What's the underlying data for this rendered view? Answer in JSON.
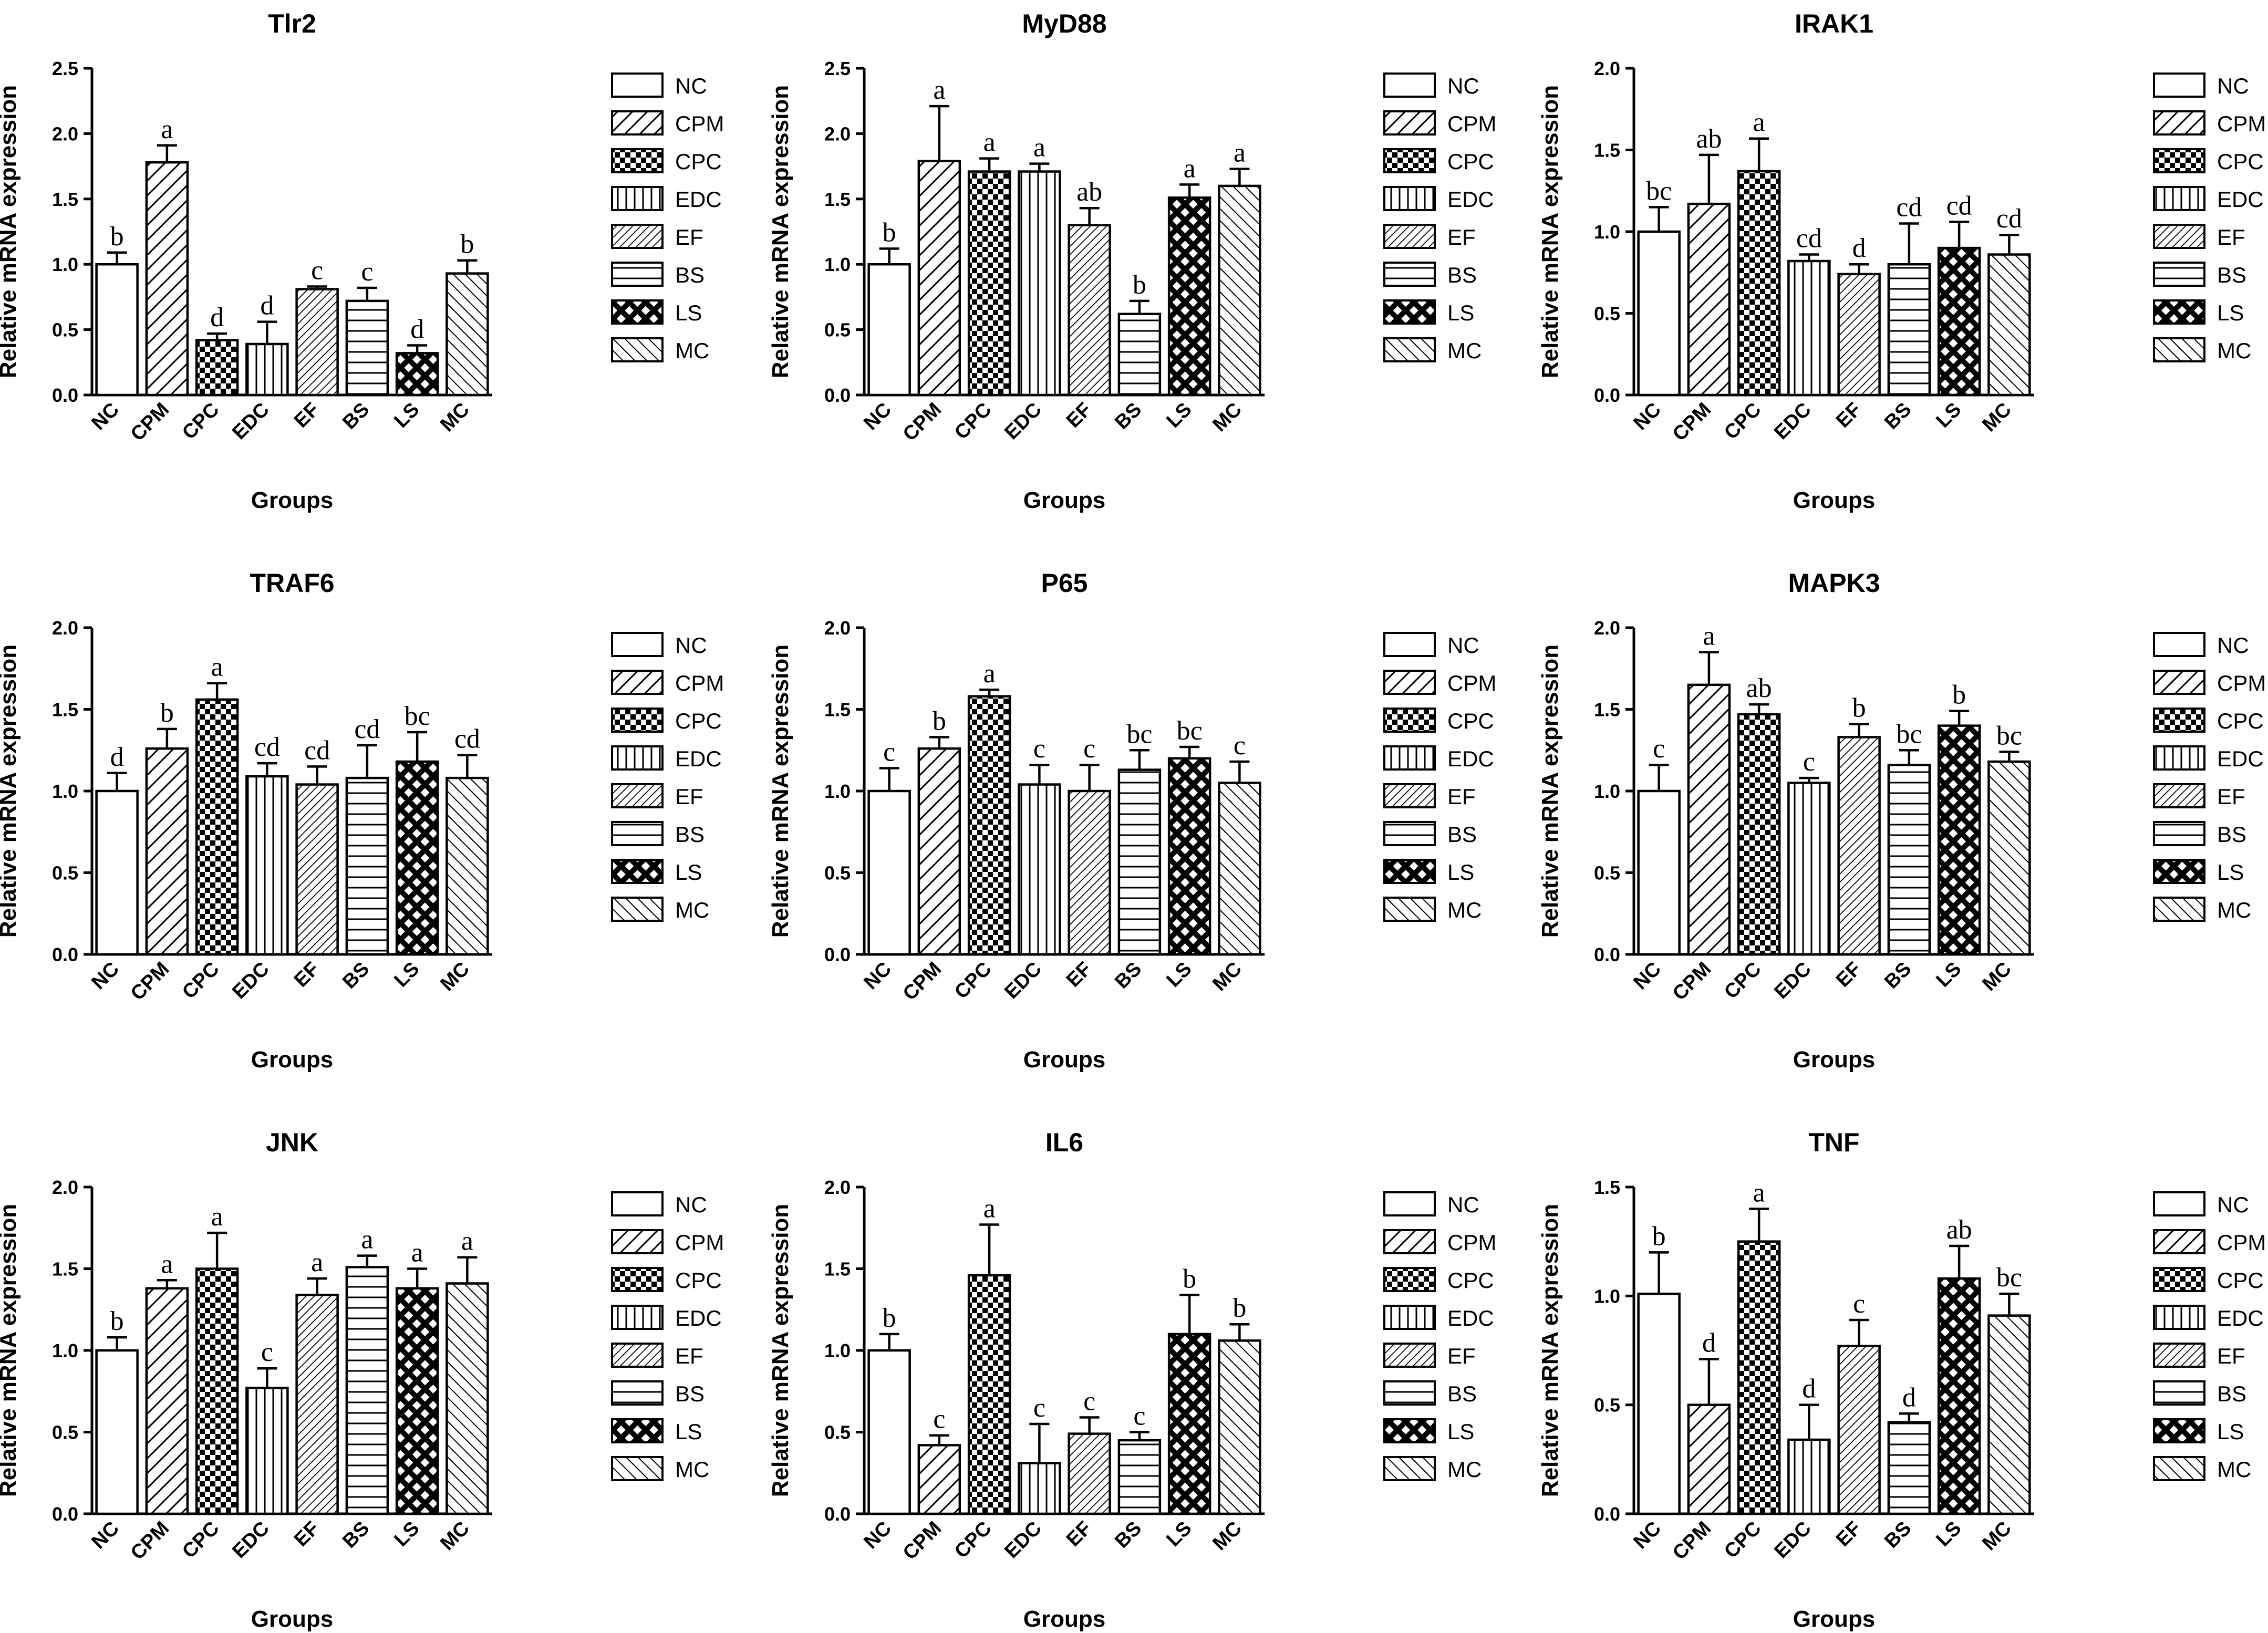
{
  "groups": [
    "NC",
    "CPM",
    "CPC",
    "EDC",
    "EF",
    "BS",
    "LS",
    "MC"
  ],
  "patterns": {
    "NC": "white",
    "CPM": "diag-wide",
    "CPC": "checker",
    "EDC": "vertical",
    "EF": "diag-dense",
    "BS": "horizontal",
    "LS": "crosshatch-bold",
    "MC": "diag-back"
  },
  "chart_data": [
    {
      "type": "bar",
      "title": "Tlr2",
      "xlabel": "Groups",
      "ylabel": "Relative mRNA expression",
      "ylim": [
        0,
        2.5
      ],
      "yticks": [
        "0.0",
        "0.5",
        "1.0",
        "1.5",
        "2.0",
        "2.5"
      ],
      "categories": [
        "NC",
        "CPM",
        "CPC",
        "EDC",
        "EF",
        "BS",
        "LS",
        "MC"
      ],
      "values": [
        1.0,
        1.78,
        0.42,
        0.39,
        0.81,
        0.72,
        0.32,
        0.93
      ],
      "errors": [
        0.09,
        0.13,
        0.05,
        0.17,
        0.02,
        0.1,
        0.06,
        0.1
      ],
      "letters": [
        "b",
        "a",
        "d",
        "d",
        "c",
        "c",
        "d",
        "b"
      ]
    },
    {
      "type": "bar",
      "title": "MyD88",
      "xlabel": "Groups",
      "ylabel": "Relative mRNA expression",
      "ylim": [
        0,
        2.5
      ],
      "yticks": [
        "0.0",
        "0.5",
        "1.0",
        "1.5",
        "2.0",
        "2.5"
      ],
      "categories": [
        "NC",
        "CPM",
        "CPC",
        "EDC",
        "EF",
        "BS",
        "LS",
        "MC"
      ],
      "values": [
        1.0,
        1.79,
        1.71,
        1.71,
        1.3,
        0.62,
        1.51,
        1.6
      ],
      "errors": [
        0.12,
        0.42,
        0.1,
        0.06,
        0.13,
        0.1,
        0.1,
        0.13
      ],
      "letters": [
        "b",
        "a",
        "a",
        "a",
        "ab",
        "b",
        "a",
        "a"
      ]
    },
    {
      "type": "bar",
      "title": "IRAK1",
      "xlabel": "Groups",
      "ylabel": "Relative mRNA expression",
      "ylim": [
        0,
        2.0
      ],
      "yticks": [
        "0.0",
        "0.5",
        "1.0",
        "1.5",
        "2.0"
      ],
      "categories": [
        "NC",
        "CPM",
        "CPC",
        "EDC",
        "EF",
        "BS",
        "LS",
        "MC"
      ],
      "values": [
        1.0,
        1.17,
        1.37,
        0.82,
        0.74,
        0.8,
        0.9,
        0.86
      ],
      "errors": [
        0.15,
        0.3,
        0.2,
        0.04,
        0.06,
        0.25,
        0.16,
        0.12
      ],
      "letters": [
        "bc",
        "ab",
        "a",
        "cd",
        "d",
        "cd",
        "cd",
        "cd"
      ]
    },
    {
      "type": "bar",
      "title": "TRAF6",
      "xlabel": "Groups",
      "ylabel": "Relative mRNA expression",
      "ylim": [
        0,
        2.0
      ],
      "yticks": [
        "0.0",
        "0.5",
        "1.0",
        "1.5",
        "2.0"
      ],
      "categories": [
        "NC",
        "CPM",
        "CPC",
        "EDC",
        "EF",
        "BS",
        "LS",
        "MC"
      ],
      "values": [
        1.0,
        1.26,
        1.56,
        1.09,
        1.04,
        1.08,
        1.18,
        1.08
      ],
      "errors": [
        0.11,
        0.12,
        0.1,
        0.08,
        0.11,
        0.2,
        0.18,
        0.14
      ],
      "letters": [
        "d",
        "b",
        "a",
        "cd",
        "cd",
        "cd",
        "bc",
        "cd"
      ]
    },
    {
      "type": "bar",
      "title": "P65",
      "xlabel": "Groups",
      "ylabel": "Relative mRNA expression",
      "ylim": [
        0,
        2.0
      ],
      "yticks": [
        "0.0",
        "0.5",
        "1.0",
        "1.5",
        "2.0"
      ],
      "categories": [
        "NC",
        "CPM",
        "CPC",
        "EDC",
        "EF",
        "BS",
        "LS",
        "MC"
      ],
      "values": [
        1.0,
        1.26,
        1.58,
        1.04,
        1.0,
        1.13,
        1.2,
        1.05
      ],
      "errors": [
        0.14,
        0.07,
        0.04,
        0.12,
        0.16,
        0.12,
        0.07,
        0.13
      ],
      "letters": [
        "c",
        "b",
        "a",
        "c",
        "c",
        "bc",
        "bc",
        "c"
      ]
    },
    {
      "type": "bar",
      "title": "MAPK3",
      "xlabel": "Groups",
      "ylabel": "Relative mRNA expression",
      "ylim": [
        0,
        2.0
      ],
      "yticks": [
        "0.0",
        "0.5",
        "1.0",
        "1.5",
        "2.0"
      ],
      "categories": [
        "NC",
        "CPM",
        "CPC",
        "EDC",
        "EF",
        "BS",
        "LS",
        "MC"
      ],
      "values": [
        1.0,
        1.65,
        1.47,
        1.05,
        1.33,
        1.16,
        1.4,
        1.18
      ],
      "errors": [
        0.16,
        0.2,
        0.06,
        0.03,
        0.08,
        0.09,
        0.09,
        0.06
      ],
      "letters": [
        "c",
        "a",
        "ab",
        "c",
        "b",
        "bc",
        "b",
        "bc"
      ]
    },
    {
      "type": "bar",
      "title": "JNK",
      "xlabel": "Groups",
      "ylabel": "Relative mRNA expression",
      "ylim": [
        0,
        2.0
      ],
      "yticks": [
        "0.0",
        "0.5",
        "1.0",
        "1.5",
        "2.0"
      ],
      "categories": [
        "NC",
        "CPM",
        "CPC",
        "EDC",
        "EF",
        "BS",
        "LS",
        "MC"
      ],
      "values": [
        1.0,
        1.38,
        1.5,
        0.77,
        1.34,
        1.51,
        1.38,
        1.41
      ],
      "errors": [
        0.08,
        0.05,
        0.22,
        0.12,
        0.1,
        0.07,
        0.12,
        0.16
      ],
      "letters": [
        "b",
        "a",
        "a",
        "c",
        "a",
        "a",
        "a",
        "a"
      ]
    },
    {
      "type": "bar",
      "title": "IL6",
      "xlabel": "Groups",
      "ylabel": "Relative mRNA expression",
      "ylim": [
        0,
        2.0
      ],
      "yticks": [
        "0.0",
        "0.5",
        "1.0",
        "1.5",
        "2.0"
      ],
      "categories": [
        "NC",
        "CPM",
        "CPC",
        "EDC",
        "EF",
        "BS",
        "LS",
        "MC"
      ],
      "values": [
        1.0,
        0.42,
        1.46,
        0.31,
        0.49,
        0.45,
        1.1,
        1.06
      ],
      "errors": [
        0.1,
        0.06,
        0.31,
        0.24,
        0.1,
        0.05,
        0.24,
        0.1
      ],
      "letters": [
        "b",
        "c",
        "a",
        "c",
        "c",
        "c",
        "b",
        "b"
      ]
    },
    {
      "type": "bar",
      "title": "TNF",
      "xlabel": "Groups",
      "ylabel": "Relative mRNA expression",
      "ylim": [
        0,
        1.5
      ],
      "yticks": [
        "0.0",
        "0.5",
        "1.0",
        "1.5"
      ],
      "categories": [
        "NC",
        "CPM",
        "CPC",
        "EDC",
        "EF",
        "BS",
        "LS",
        "MC"
      ],
      "values": [
        1.01,
        0.5,
        1.25,
        0.34,
        0.77,
        0.42,
        1.08,
        0.91
      ],
      "errors": [
        0.19,
        0.21,
        0.15,
        0.16,
        0.12,
        0.04,
        0.15,
        0.1
      ],
      "letters": [
        "b",
        "d",
        "a",
        "d",
        "c",
        "d",
        "ab",
        "bc"
      ]
    }
  ]
}
